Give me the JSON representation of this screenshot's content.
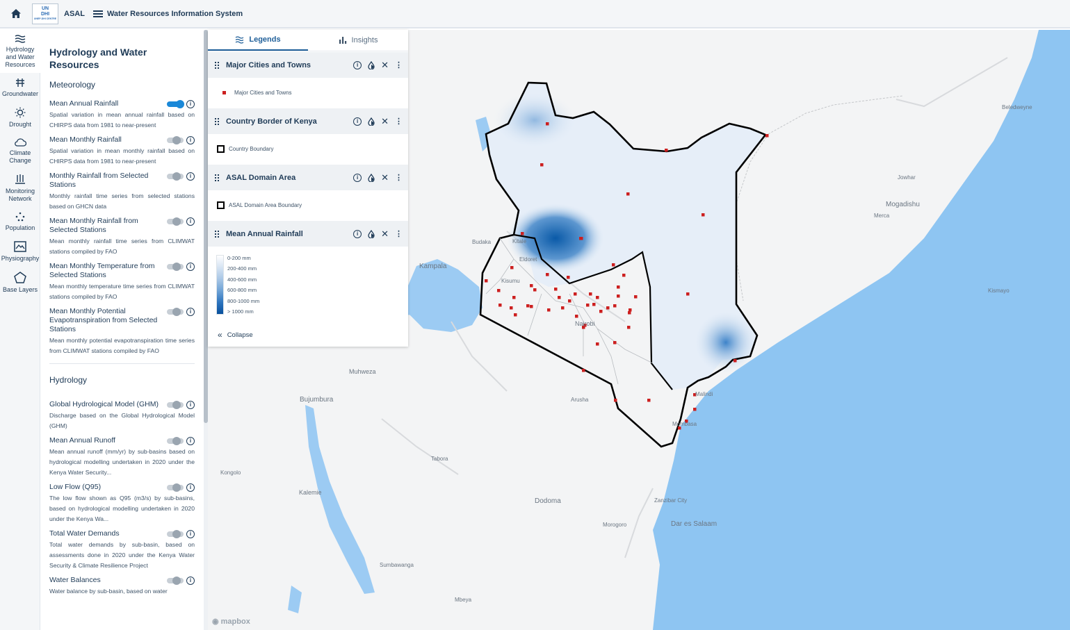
{
  "topbar": {
    "logo_line1": "UN",
    "logo_line2": "DHI",
    "logo_line3": "UNEP-DHI CENTRE",
    "brand": "ASAL",
    "title": "Water Resources Information System"
  },
  "rail": {
    "items": [
      {
        "label": "Hydrology and Water Resources",
        "icon": "waves-icon"
      },
      {
        "label": "Groundwater",
        "icon": "well-icon"
      },
      {
        "label": "Drought",
        "icon": "sun-icon"
      },
      {
        "label": "Climate Change",
        "icon": "cloud-icon"
      },
      {
        "label": "Monitoring Network",
        "icon": "gauge-icon"
      },
      {
        "label": "Population",
        "icon": "dots-icon"
      },
      {
        "label": "Physiography",
        "icon": "terrain-icon"
      },
      {
        "label": "Base Layers",
        "icon": "pentagon-icon"
      }
    ]
  },
  "panel": {
    "title": "Hydrology and Water Resources",
    "meteorology": {
      "heading": "Meteorology",
      "layers": [
        {
          "name": "Mean Annual Rainfall",
          "on": true,
          "desc": "Spatial variation in mean annual rainfall based on CHIRPS data from 1981 to near-present"
        },
        {
          "name": "Mean Monthly Rainfall",
          "on": false,
          "desc": "Spatial variation in mean monthly rainfall based on CHIRPS data from 1981 to near-present"
        },
        {
          "name": "Monthly Rainfall from Selected Stations",
          "on": false,
          "desc": "Monthly rainfall time series from selected stations based on GHCN data"
        },
        {
          "name": "Mean Monthly Rainfall from Selected Stations",
          "on": false,
          "desc": "Mean monthly rainfall time series from CLIMWAT stations compiled by FAO"
        },
        {
          "name": "Mean Monthly Temperature from Selected Stations",
          "on": false,
          "desc": "Mean monthly temperature time series from CLIMWAT stations compiled by FAO"
        },
        {
          "name": "Mean Monthly Potential Evapotranspiration from Selected Stations",
          "on": false,
          "desc": "Mean monthly potential evapotranspiration time series from CLIMWAT stations compiled by FAO"
        }
      ]
    },
    "hydrology": {
      "heading": "Hydrology",
      "layers": [
        {
          "name": "Global Hydrological Model (GHM)",
          "on": false,
          "desc": "Discharge based on the Global Hydrological Model (GHM)"
        },
        {
          "name": "Mean Annual Runoff",
          "on": false,
          "desc": "Mean annual runoff (mm/yr) by sub-basins based on hydrological modelling undertaken in 2020 under the Kenya Water Security..."
        },
        {
          "name": "Low Flow (Q95)",
          "on": false,
          "desc": "The low flow shown as Q95 (m3/s) by sub-basins, based on hydrological modelling undertaken in 2020 under the Kenya Wa..."
        },
        {
          "name": "Total Water Demands",
          "on": false,
          "desc": "Total water demands by sub-basin, based on assessments done in 2020 under the Kenya Water Security & Climate Resilience Project"
        },
        {
          "name": "Water Balances",
          "on": false,
          "desc": "Water balance by sub-basin, based on water"
        }
      ]
    }
  },
  "legend": {
    "tabs": [
      "Legends",
      "Insights"
    ],
    "layers": [
      {
        "title": "Major Cities and Towns",
        "item": "Major Cities and Towns",
        "kind": "point"
      },
      {
        "title": "Country Border of Kenya",
        "item": "Country Boundary",
        "kind": "box"
      },
      {
        "title": "ASAL Domain Area",
        "item": "ASAL Domain Area Boundary",
        "kind": "box"
      },
      {
        "title": "Mean Annual Rainfall",
        "kind": "ramp"
      }
    ],
    "ramp": [
      "0-200 mm",
      "200-400 mm",
      "400-600 mm",
      "600-800 mm",
      "800-1000 mm",
      "> 1000 mm"
    ],
    "collapse": "Collapse"
  },
  "map": {
    "labels": [
      {
        "text": "Beledweyne"
      },
      {
        "text": "Jowhar"
      },
      {
        "text": "Mogadishu"
      },
      {
        "text": "Merca"
      },
      {
        "text": "Kismayo"
      },
      {
        "text": "Budaka"
      },
      {
        "text": "Kitale"
      },
      {
        "text": "Eldoret"
      },
      {
        "text": "Kampala"
      },
      {
        "text": "Kisumu"
      },
      {
        "text": "Nairobi"
      },
      {
        "text": "Muhweza"
      },
      {
        "text": "Bujumbura"
      },
      {
        "text": "Arusha"
      },
      {
        "text": "Malindi"
      },
      {
        "text": "Mombasa"
      },
      {
        "text": "Kongolo"
      },
      {
        "text": "Tabora"
      },
      {
        "text": "Kalemie"
      },
      {
        "text": "Dodoma"
      },
      {
        "text": "Zanzibar City"
      },
      {
        "text": "Morogoro"
      },
      {
        "text": "Dar es Salaam"
      },
      {
        "text": "Sumbawanga"
      },
      {
        "text": "Mbeya"
      }
    ],
    "attribution": "mapbox",
    "colors": {
      "ocean": "#8ec5f2",
      "land": "#f3f4f5",
      "border": "#000000",
      "city": "#cc1f1f"
    }
  }
}
